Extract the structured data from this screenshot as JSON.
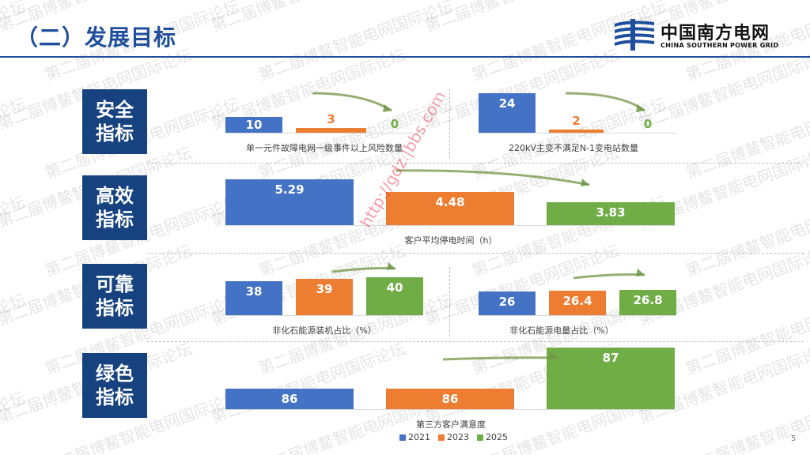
{
  "title": "（二）发展目标",
  "logo": {
    "cn": "中国南方电网",
    "en": "CHINA SOUTHERN POWER GRID"
  },
  "watermark_text": "第二届博鳌智能电网国际论坛",
  "url_watermark": "http://gdz.|bbs.com",
  "page_number": "5",
  "colors": {
    "y2021": "#4472c4",
    "y2023": "#ed7d31",
    "y2025": "#70ad47",
    "category_bg": "#16427f",
    "title": "#1f4f9c"
  },
  "legend": [
    {
      "label": "2021",
      "color": "#4472c4"
    },
    {
      "label": "2023",
      "color": "#ed7d31"
    },
    {
      "label": "2025",
      "color": "#70ad47"
    }
  ],
  "categories": [
    {
      "line1": "安全",
      "line2": "指标"
    },
    {
      "line1": "高效",
      "line2": "指标"
    },
    {
      "line1": "可靠",
      "line2": "指标"
    },
    {
      "line1": "绿色",
      "line2": "指标"
    }
  ],
  "chart_data": [
    {
      "type": "bar",
      "title": "单一元件故障电网一级事件以上风险数量",
      "categories": [
        "2021",
        "2023",
        "2025"
      ],
      "values": [
        10,
        3,
        0
      ],
      "labels": [
        "10",
        "3",
        "0"
      ]
    },
    {
      "type": "bar",
      "title": "220kV主变不满足N-1变电站数量",
      "categories": [
        "2021",
        "2023",
        "2025"
      ],
      "values": [
        24,
        2,
        0
      ],
      "labels": [
        "24",
        "2",
        "0"
      ]
    },
    {
      "type": "bar",
      "title": "客户平均停电时间（h）",
      "categories": [
        "2021",
        "2023",
        "2025"
      ],
      "values": [
        5.29,
        4.48,
        3.83
      ],
      "labels": [
        "5.29",
        "4.48",
        "3.83"
      ]
    },
    {
      "type": "bar",
      "title": "非化石能源装机占比（%）",
      "categories": [
        "2021",
        "2023",
        "2025"
      ],
      "values": [
        38,
        39,
        40
      ],
      "labels": [
        "38",
        "39",
        "40"
      ]
    },
    {
      "type": "bar",
      "title": "非化石能源电量占比（%）",
      "categories": [
        "2021",
        "2023",
        "2025"
      ],
      "values": [
        26,
        26.4,
        26.8
      ],
      "labels": [
        "26",
        "26.4",
        "26.8"
      ]
    },
    {
      "type": "bar",
      "title": "第三方客户满意度",
      "categories": [
        "2021",
        "2023",
        "2025"
      ],
      "values": [
        86,
        86,
        87
      ],
      "labels": [
        "86",
        "86",
        "87"
      ]
    }
  ]
}
